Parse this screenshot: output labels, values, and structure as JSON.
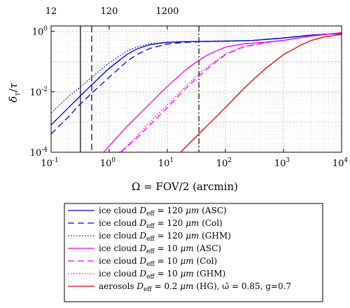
{
  "chart_data": {
    "type": "line",
    "x_scale": "log",
    "y_scale": "log",
    "xlim": [
      0.1,
      10000
    ],
    "ylim": [
      0.0001,
      1.5
    ],
    "grid": true,
    "xlabel": "Ω = FOV/2 (arcmin)",
    "ylabel": "δτ/τ",
    "x_ticks": [
      "10^-1",
      "10^0",
      "10^1",
      "10^2",
      "10^3",
      "10^4"
    ],
    "y_ticks": [
      "10^-4",
      "10^-2",
      "10^0"
    ],
    "top_axis_ticks": [
      {
        "label": "12",
        "x": 0.1
      },
      {
        "label": "120",
        "x": 1.0
      },
      {
        "label": "1200",
        "x": 10.0
      }
    ],
    "vertical_lines": [
      {
        "x": 0.32,
        "style": "solid",
        "color": "#000000"
      },
      {
        "x": 0.5,
        "style": "dashed",
        "color": "#000000"
      },
      {
        "x": 35,
        "style": "dashdot",
        "color": "#000000"
      }
    ],
    "legend_position": "bottom-outside",
    "series": [
      {
        "name": "ice cloud D_eff = 120 μm (ASC)",
        "color": "#0000cc",
        "style": "solid",
        "x": [
          0.1,
          0.2,
          0.3,
          0.5,
          1,
          2,
          3,
          5,
          10,
          20,
          50,
          100,
          300,
          1000,
          3000,
          10000
        ],
        "y": [
          0.0008,
          0.003,
          0.0065,
          0.017,
          0.06,
          0.17,
          0.26,
          0.36,
          0.43,
          0.45,
          0.46,
          0.47,
          0.5,
          0.6,
          0.75,
          0.85
        ]
      },
      {
        "name": "ice cloud D_eff = 120 μm (Col)",
        "color": "#0000cc",
        "style": "dashed",
        "x": [
          0.1,
          0.2,
          0.3,
          0.5,
          1,
          2,
          3,
          5,
          10,
          20,
          50,
          100,
          300,
          1000,
          3000,
          10000
        ],
        "y": [
          0.0004,
          0.0015,
          0.0035,
          0.009,
          0.03,
          0.1,
          0.17,
          0.27,
          0.38,
          0.43,
          0.46,
          0.47,
          0.5,
          0.6,
          0.75,
          0.85
        ]
      },
      {
        "name": "ice cloud D_eff = 120 μm (GHM)",
        "color": "#0000cc",
        "style": "dotted",
        "x": [
          0.1,
          0.2,
          0.3,
          0.5,
          1,
          2,
          3,
          5,
          10,
          20,
          50,
          100,
          300,
          1000,
          3000,
          10000
        ],
        "y": [
          0.002,
          0.007,
          0.013,
          0.03,
          0.09,
          0.22,
          0.3,
          0.39,
          0.44,
          0.46,
          0.47,
          0.48,
          0.5,
          0.6,
          0.75,
          0.85
        ]
      },
      {
        "name": "ice cloud D_eff = 10 μm (ASC)",
        "color": "#ee00ee",
        "style": "solid",
        "x": [
          0.8,
          1,
          2,
          3,
          5,
          10,
          20,
          30,
          50,
          100,
          200,
          500,
          1000,
          3000,
          10000
        ],
        "y": [
          0.0001,
          0.00016,
          0.0007,
          0.0015,
          0.004,
          0.015,
          0.05,
          0.09,
          0.17,
          0.3,
          0.38,
          0.44,
          0.5,
          0.7,
          0.9
        ]
      },
      {
        "name": "ice cloud D_eff = 10 μm (Col)",
        "color": "#ee00ee",
        "style": "dashed",
        "x": [
          1.6,
          2,
          3,
          5,
          10,
          20,
          30,
          50,
          100,
          200,
          500,
          1000,
          3000,
          10000
        ],
        "y": [
          0.0001,
          0.00015,
          0.0003,
          0.0008,
          0.003,
          0.012,
          0.025,
          0.06,
          0.17,
          0.3,
          0.42,
          0.5,
          0.7,
          0.9
        ]
      },
      {
        "name": "ice cloud D_eff = 10 μm (GHM)",
        "color": "#ee00ee",
        "style": "dotted",
        "x": [
          1.5,
          2,
          3,
          5,
          10,
          20,
          30,
          50,
          100,
          200,
          500,
          1000,
          3000,
          10000
        ],
        "y": [
          0.0001,
          0.00016,
          0.00035,
          0.001,
          0.0037,
          0.014,
          0.03,
          0.07,
          0.18,
          0.31,
          0.43,
          0.5,
          0.7,
          0.9
        ]
      },
      {
        "name": "aerosols D_eff = 0.2 μm (HG), ω̄ = 0.85, g=0.7",
        "color": "#dd0000",
        "style": "solid",
        "x": [
          17,
          20,
          30,
          50,
          100,
          200,
          300,
          500,
          1000,
          2000,
          3000,
          5000,
          10000
        ],
        "y": [
          0.0001,
          0.00014,
          0.0003,
          0.0008,
          0.003,
          0.012,
          0.025,
          0.06,
          0.17,
          0.35,
          0.5,
          0.65,
          0.8
        ]
      }
    ]
  },
  "legend": {
    "entries": [
      {
        "prefix": "ice cloud ",
        "d_sub": "eff",
        "value": " = 120 ",
        "unit": "μm",
        "suffix": " (ASC)"
      },
      {
        "prefix": "ice cloud ",
        "d_sub": "eff",
        "value": " = 120 ",
        "unit": "μm",
        "suffix": " (Col)"
      },
      {
        "prefix": "ice cloud ",
        "d_sub": "eff",
        "value": " = 120 ",
        "unit": "μm",
        "suffix": " (GHM)"
      },
      {
        "prefix": "ice cloud ",
        "d_sub": "eff",
        "value": " = 10 ",
        "unit": "μm",
        "suffix": " (ASC)"
      },
      {
        "prefix": "ice cloud ",
        "d_sub": "eff",
        "value": " = 10 ",
        "unit": "μm",
        "suffix": " (Col)"
      },
      {
        "prefix": "ice cloud ",
        "d_sub": "eff",
        "value": " = 10 ",
        "unit": "μm",
        "suffix": " (GHM)"
      },
      {
        "prefix": "aerosols ",
        "d_sub": "eff",
        "value": " = 0.2 ",
        "unit": "μm",
        "suffix": " (HG), ω̄ = 0.85, g=0.7"
      }
    ]
  }
}
